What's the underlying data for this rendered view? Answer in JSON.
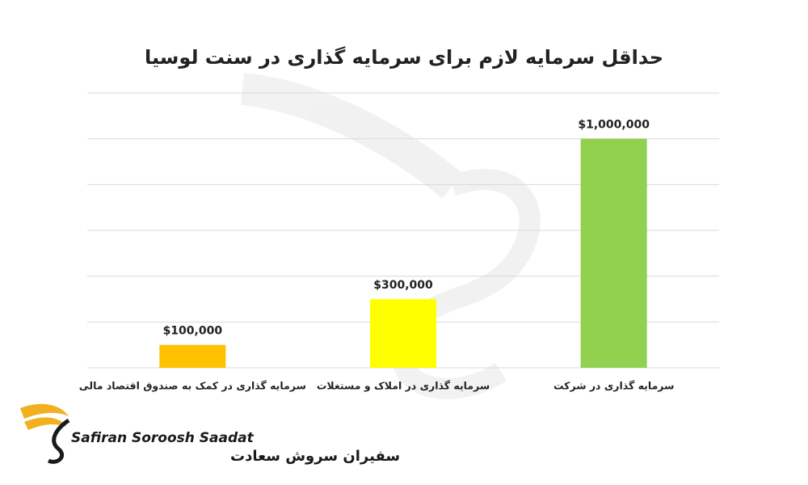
{
  "chart_data": {
    "type": "bar",
    "title": "حداقل سرمایه لازم برای سرمایه گذاری در سنت لوسیا",
    "categories": [
      "سرمایه گذاری در کمک به صندوق اقتصاد مالی",
      "سرمایه گذاری در املاک و مستغلات",
      "سرمایه گذاری در شرکت"
    ],
    "values": [
      100000,
      300000,
      1000000
    ],
    "value_labels": [
      "$100,000",
      "$300,000",
      "$1,000,000"
    ],
    "colors": [
      "#ffc000",
      "#ffff00",
      "#92d050"
    ],
    "ylim": [
      0,
      1200000
    ],
    "yticks": [
      0,
      200000,
      400000,
      600000,
      800000,
      1000000,
      1200000
    ],
    "grid": true
  },
  "logo": {
    "english": "Safiran Soroosh Saadat",
    "persian": "سفیران سروش سعادت"
  }
}
